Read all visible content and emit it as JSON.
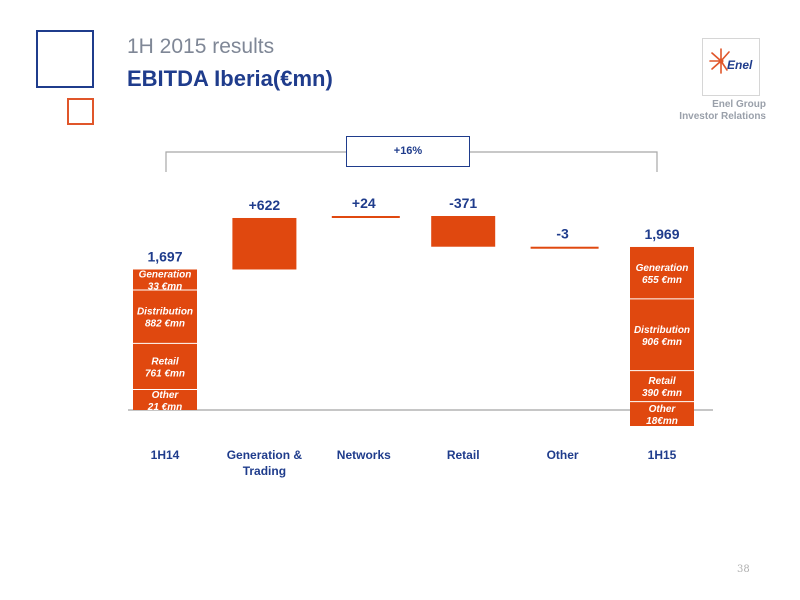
{
  "header": {
    "subtitle": "1H 2015 results",
    "title": "EBITDA Iberia(€mn)",
    "logo_text": "Enel",
    "org_line1": "Enel Group",
    "org_line2": "Investor Relations",
    "page_number": "38"
  },
  "colors": {
    "bar": "#e0480f",
    "label": "#1f3c8c",
    "axis": "#8c8c8c",
    "bracket": "#a8a8a8"
  },
  "chart_data": {
    "type": "bar",
    "variant": "waterfall",
    "categories": [
      "1H14",
      "Generation & Trading",
      "Networks",
      "Retail",
      "Other",
      "1H15"
    ],
    "change_label": "+16%",
    "bars": [
      {
        "category": "1H14",
        "kind": "total",
        "value": 1697,
        "label": "1,697",
        "segments": [
          {
            "name": "Other",
            "value_label": "21 €mn",
            "value": 21
          },
          {
            "name": "Retail",
            "value_label": "761 €mn",
            "value": 761
          },
          {
            "name": "Distribution",
            "value_label": "882 €mn",
            "value": 882
          },
          {
            "name": "Generation",
            "value_label": "33 €mn",
            "value": 33
          }
        ]
      },
      {
        "category": "Generation & Trading",
        "kind": "delta",
        "value": 622,
        "label": "+622"
      },
      {
        "category": "Networks",
        "kind": "delta",
        "value": 24,
        "label": "+24"
      },
      {
        "category": "Retail",
        "kind": "delta",
        "value": -371,
        "label": "-371"
      },
      {
        "category": "Other",
        "kind": "delta",
        "value": -3,
        "label": "-3"
      },
      {
        "category": "1H15",
        "kind": "total",
        "value": 1969,
        "label": "1,969",
        "segments": [
          {
            "name": "Other",
            "value_label": "18€mn",
            "value": 18
          },
          {
            "name": "Retail",
            "value_label": "390 €mn",
            "value": 390
          },
          {
            "name": "Distribution",
            "value_label": "906 €mn",
            "value": 906
          },
          {
            "name": "Generation",
            "value_label": "655 €mn",
            "value": 655
          }
        ]
      }
    ]
  }
}
